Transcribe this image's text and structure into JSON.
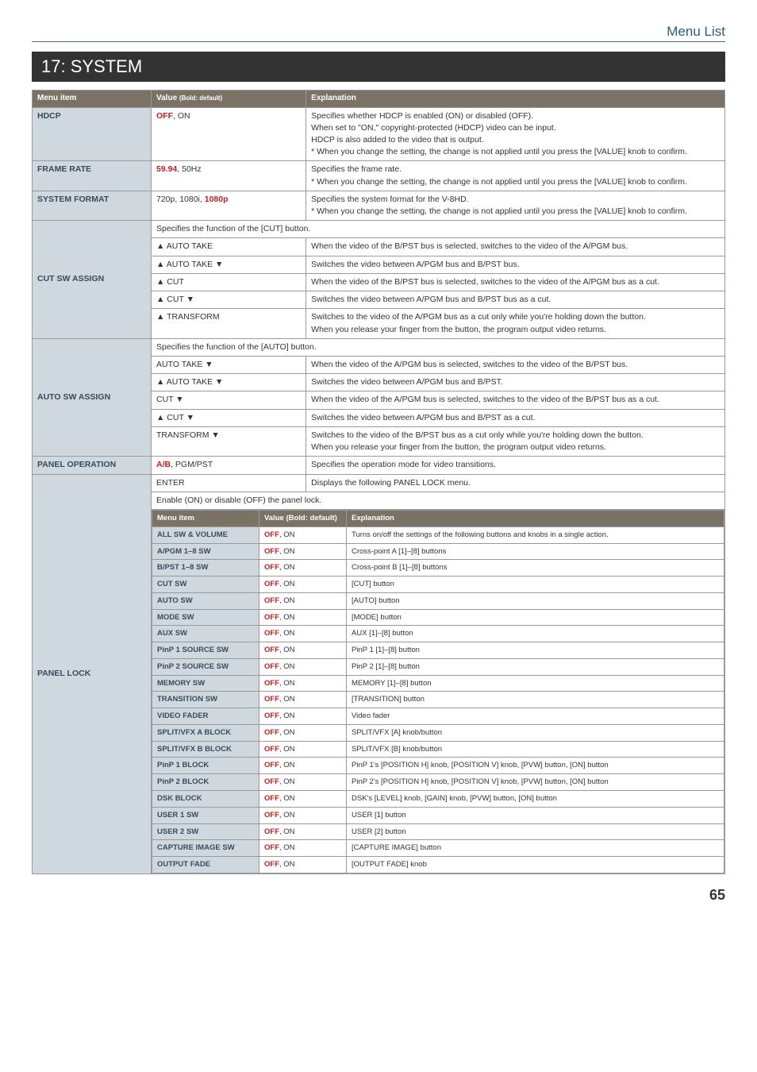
{
  "page": {
    "crumb": "Menu List",
    "title": "17: SYSTEM",
    "number": "65"
  },
  "colors": {
    "accent": "#c02020",
    "header_bg": "#7a7265",
    "menu_bg": "#cfd8de",
    "title_bg": "#333333",
    "crumb_color": "#2a5a8a",
    "border": "#999999"
  },
  "heads": {
    "menu": "Menu item",
    "value": "Value",
    "value_small": "(Bold: default)",
    "exp": "Explanation"
  },
  "rows": {
    "hdcp": {
      "menu": "HDCP",
      "val": "OFF",
      "val2": ", ON",
      "exp": "Specifies whether HDCP is enabled (ON) or disabled (OFF).\nWhen set to \"ON,\" copyright-protected (HDCP) video can be input.\nHDCP is also added to the video that is output.\n* When you change the setting, the change is not applied until you press the [VALUE] knob to confirm."
    },
    "frame": {
      "menu": "FRAME RATE",
      "val": "59.94",
      "val2": ", 50Hz",
      "exp": "Specifies the frame rate.\n* When you change the setting, the change is not applied until you press the [VALUE] knob to confirm."
    },
    "sysfmt": {
      "menu": "SYSTEM FORMAT",
      "val_pre": "720p, 1080i, ",
      "val": "1080p",
      "exp": "Specifies the system format for the V-8HD.\n* When you change the setting, the change is not applied until you press the [VALUE] knob to confirm."
    },
    "cut": {
      "menu": "CUT SW ASSIGN",
      "note": "Specifies the function of the [CUT] button.",
      "r1v": "▲ AUTO TAKE",
      "r1e": "When the video of the B/PST bus is selected, switches to the video of the A/PGM bus.",
      "r2v": "▲ AUTO TAKE ▼",
      "r2e": "Switches the video between A/PGM bus and B/PST bus.",
      "r3v": "▲ CUT",
      "r3e": "When the video of the B/PST bus is selected, switches to the video of the A/PGM bus as a cut.",
      "r4v": "▲ CUT ▼",
      "r4e": "Switches the video between A/PGM bus and B/PST bus as a cut.",
      "r5v": "▲ TRANSFORM",
      "r5e": "Switches to the video of the A/PGM bus as a cut only while you're holding down the button.\nWhen you release your finger from the button, the program output video returns."
    },
    "auto": {
      "menu": "AUTO SW ASSIGN",
      "note": "Specifies the function of the [AUTO] button.",
      "r1v": "AUTO TAKE ▼",
      "r1e": "When the video of the A/PGM bus is selected, switches to the video of the B/PST bus.",
      "r2v": "▲ AUTO TAKE ▼",
      "r2e": "Switches the video between A/PGM bus and B/PST.",
      "r3v": "CUT ▼",
      "r3e": "When the video of the A/PGM bus is selected, switches to the video of the B/PST bus as a cut.",
      "r4v": "▲ CUT ▼",
      "r4e": "Switches the video between A/PGM bus and B/PST as a cut.",
      "r5v": "TRANSFORM ▼",
      "r5e": "Switches to the video of the B/PST bus as a cut only while you're holding down the button.\nWhen you release your finger from the button, the program output video returns."
    },
    "panel_op": {
      "menu": "PANEL OPERATION",
      "val": "A/B",
      "val2": ", PGM/PST",
      "exp": "Specifies the operation mode for video transitions."
    },
    "panel_lock": {
      "menu": "PANEL LOCK",
      "enter_v": "ENTER",
      "enter_e": "Displays the following PANEL LOCK menu.",
      "note": "Enable (ON) or disable (OFF) the panel lock."
    }
  },
  "inner": {
    "head": {
      "menu": "Menu item",
      "value": "Value (Bold: default)",
      "exp": "Explanation"
    },
    "val": "OFF",
    "val2": ", ON",
    "items": [
      {
        "m": "ALL SW & VOLUME",
        "e": "Turns on/off the settings of the following buttons and knobs in a single action."
      },
      {
        "m": "A/PGM 1–8 SW",
        "e": "Cross-point A [1]–[8] buttons"
      },
      {
        "m": "B/PST 1–8 SW",
        "e": "Cross-point B [1]–[8] buttons"
      },
      {
        "m": "CUT SW",
        "e": "[CUT] button"
      },
      {
        "m": "AUTO SW",
        "e": "[AUTO] button"
      },
      {
        "m": "MODE SW",
        "e": "[MODE] button"
      },
      {
        "m": "AUX SW",
        "e": "AUX [1]–[8] button"
      },
      {
        "m": "PinP 1 SOURCE SW",
        "e": "PinP 1 [1]–[8] button"
      },
      {
        "m": "PinP 2 SOURCE SW",
        "e": "PinP 2 [1]–[8] button"
      },
      {
        "m": "MEMORY SW",
        "e": "MEMORY [1]–[8] button"
      },
      {
        "m": "TRANSITION SW",
        "e": "[TRANSITION] button"
      },
      {
        "m": "VIDEO FADER",
        "e": "Video fader"
      },
      {
        "m": "SPLIT/VFX A BLOCK",
        "e": "SPLIT/VFX [A] knob/button"
      },
      {
        "m": "SPLIT/VFX B BLOCK",
        "e": "SPLIT/VFX [B] knob/button"
      },
      {
        "m": "PinP 1 BLOCK",
        "e": "PinP 1's [POSITION H] knob, [POSITION V] knob, [PVW] button, [ON] button"
      },
      {
        "m": "PinP 2 BLOCK",
        "e": "PinP 2's [POSITION H] knob, [POSITION V] knob, [PVW] button, [ON] button"
      },
      {
        "m": "DSK BLOCK",
        "e": "DSK's [LEVEL] knob, [GAIN] knob, [PVW] button, [ON] button"
      },
      {
        "m": "USER 1 SW",
        "e": "USER [1] button"
      },
      {
        "m": "USER 2 SW",
        "e": "USER [2] button"
      },
      {
        "m": "CAPTURE IMAGE SW",
        "e": "[CAPTURE IMAGE] button"
      },
      {
        "m": "OUTPUT FADE",
        "e": "[OUTPUT FADE] knob"
      }
    ]
  }
}
